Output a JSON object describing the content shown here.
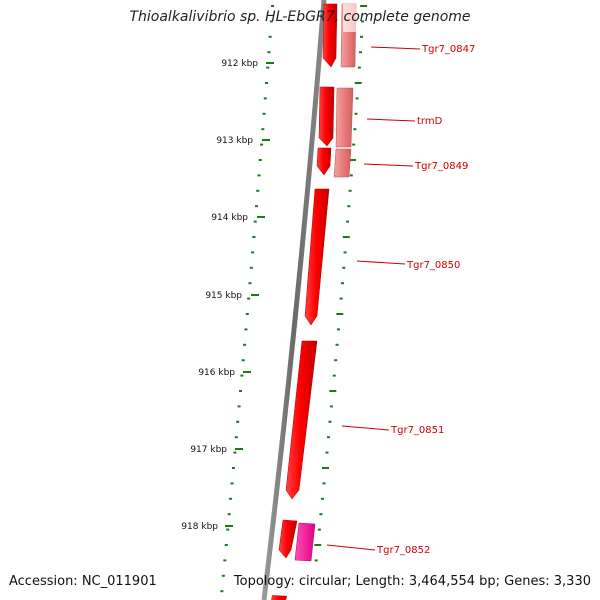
{
  "title": "Thioalkalivibrio sp. HL-EbGR7, complete genome",
  "footer": {
    "accession": "Accession: NC_011901",
    "summary": "Topology: circular; Length: 3,464,554 bp; Genes: 3,330"
  },
  "ticks": [
    {
      "label": "912 kbp"
    },
    {
      "label": "913 kbp"
    },
    {
      "label": "914 kbp"
    },
    {
      "label": "915 kbp"
    },
    {
      "label": "916 kbp"
    },
    {
      "label": "917 kbp"
    },
    {
      "label": "918 kbp"
    }
  ],
  "genes": [
    {
      "name": "Tgr7_0847"
    },
    {
      "name": "trmD"
    },
    {
      "name": "Tgr7_0849"
    },
    {
      "name": "Tgr7_0850"
    },
    {
      "name": "Tgr7_0851"
    },
    {
      "name": "Tgr7_0852"
    }
  ],
  "colors": {
    "cds": "#ff0000",
    "cds_light": "#ee8888",
    "rna": "#ff1493",
    "backbone": "#7a7a7a",
    "ticks": "#1a7a1a",
    "label": "#cc0000"
  }
}
